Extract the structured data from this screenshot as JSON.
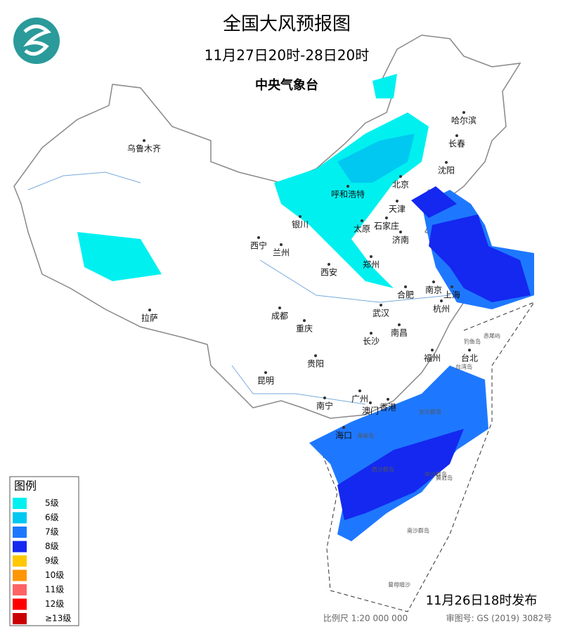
{
  "header": {
    "title": "全国大风预报图",
    "subtitle": "11月27日20时-28日20时",
    "agency": "中央气象台"
  },
  "legend": {
    "title": "图例",
    "items": [
      {
        "label": "5级",
        "color": "#00f0f0"
      },
      {
        "label": "6级",
        "color": "#00c8f0"
      },
      {
        "label": "7级",
        "color": "#1e78ff"
      },
      {
        "label": "8级",
        "color": "#1428f0"
      },
      {
        "label": "9级",
        "color": "#ffc800"
      },
      {
        "label": "10级",
        "color": "#ff9600"
      },
      {
        "label": "11级",
        "color": "#ff6464"
      },
      {
        "label": "12级",
        "color": "#ff0000"
      },
      {
        "label": "≥13级",
        "color": "#c80000"
      }
    ]
  },
  "cities": [
    "乌鲁木齐",
    "哈尔滨",
    "长春",
    "沈阳",
    "北京",
    "呼和浩特",
    "天津",
    "银川",
    "太原",
    "石家庄",
    "济南",
    "西宁",
    "兰州",
    "郑州",
    "西安",
    "合肥",
    "南京",
    "上海",
    "武汉",
    "杭州",
    "成都",
    "拉萨",
    "重庆",
    "长沙",
    "南昌",
    "贵阳",
    "福州",
    "台北",
    "昆明",
    "南宁",
    "广州",
    "澳门",
    "香港",
    "海口"
  ],
  "islands": [
    "台湾岛",
    "海南岛",
    "钓鱼岛",
    "赤尾屿",
    "东沙群岛",
    "西沙群岛",
    "中沙群岛",
    "黄岩岛",
    "南沙群岛",
    "曾母暗沙"
  ],
  "footer": {
    "issued": "11月26日18时发布",
    "scale": "比例尺 1:20 000 000",
    "approval": "审图号: GS (2019) 3082号"
  }
}
